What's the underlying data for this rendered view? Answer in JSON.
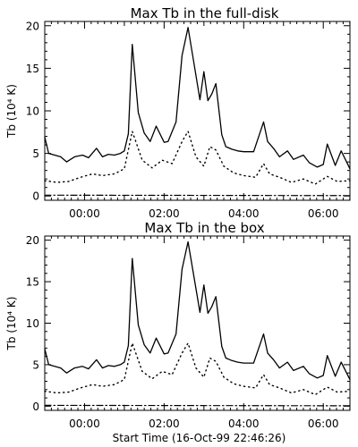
{
  "chart_data": [
    {
      "type": "line",
      "title": "Max Tb in the full-disk",
      "ylabel": "Tb (10⁴ K)",
      "xlabel": "",
      "xlim": [
        -1.0,
        6.67
      ],
      "ylim": [
        -0.5,
        20.5
      ],
      "x_ticks": [
        0,
        2,
        4,
        6
      ],
      "x_tick_labels": [
        "00:00",
        "02:00",
        "04:00",
        "06:00"
      ],
      "y_ticks": [
        0,
        5,
        10,
        15,
        20
      ],
      "y_tick_labels": [
        "0",
        "5",
        "10",
        "15",
        "20"
      ],
      "grid": false,
      "series": [
        {
          "style": "solid",
          "x": [
            -1.0,
            -0.9,
            -0.6,
            -0.45,
            -0.25,
            -0.05,
            0.1,
            0.3,
            0.45,
            0.6,
            0.75,
            0.9,
            1.0,
            1.1,
            1.2,
            1.35,
            1.5,
            1.65,
            1.8,
            2.0,
            2.1,
            2.3,
            2.45,
            2.6,
            2.75,
            2.9,
            3.0,
            3.1,
            3.2,
            3.3,
            3.45,
            3.55,
            3.7,
            3.85,
            4.0,
            4.25,
            4.5,
            4.6,
            4.75,
            4.9,
            5.1,
            5.25,
            5.5,
            5.65,
            5.85,
            6.0,
            6.1,
            6.3,
            6.45,
            6.67
          ],
          "y": [
            6.9,
            5.0,
            4.6,
            4.0,
            4.6,
            4.8,
            4.5,
            5.6,
            4.6,
            4.9,
            4.8,
            5.0,
            5.3,
            7.3,
            17.8,
            9.8,
            7.4,
            6.4,
            8.2,
            6.3,
            6.4,
            8.7,
            16.5,
            19.8,
            15.6,
            11.3,
            14.6,
            11.2,
            12.0,
            13.2,
            7.2,
            5.8,
            5.5,
            5.3,
            5.2,
            5.2,
            8.7,
            6.4,
            5.6,
            4.6,
            5.3,
            4.3,
            4.8,
            3.9,
            3.4,
            3.7,
            6.1,
            3.6,
            5.3,
            3.2
          ]
        },
        {
          "style": "dotted",
          "x": [
            -1.0,
            -0.7,
            -0.4,
            -0.1,
            0.2,
            0.45,
            0.75,
            1.0,
            1.2,
            1.45,
            1.7,
            1.95,
            2.2,
            2.45,
            2.6,
            2.8,
            3.0,
            3.15,
            3.3,
            3.5,
            3.75,
            4.0,
            4.3,
            4.5,
            4.65,
            4.9,
            5.2,
            5.5,
            5.8,
            6.1,
            6.35,
            6.67
          ],
          "y": [
            1.8,
            1.6,
            1.7,
            2.2,
            2.6,
            2.4,
            2.6,
            3.2,
            7.6,
            4.2,
            3.3,
            4.2,
            3.8,
            6.4,
            7.6,
            4.6,
            3.5,
            5.8,
            5.4,
            3.5,
            2.7,
            2.4,
            2.2,
            3.8,
            2.6,
            2.2,
            1.6,
            2.0,
            1.4,
            2.3,
            1.7,
            1.8
          ]
        },
        {
          "style": "dash-dot",
          "x": [
            -1.0,
            6.67
          ],
          "y": [
            0.1,
            0.05
          ]
        }
      ]
    },
    {
      "type": "line",
      "title": "Max Tb in the box",
      "ylabel": "Tb (10⁴ K)",
      "xlabel": "Start Time (16-Oct-99 22:46:26)",
      "xlim": [
        -1.0,
        6.67
      ],
      "ylim": [
        -0.5,
        20.5
      ],
      "x_ticks": [
        0,
        2,
        4,
        6
      ],
      "x_tick_labels": [
        "00:00",
        "02:00",
        "04:00",
        "06:00"
      ],
      "y_ticks": [
        0,
        5,
        10,
        15,
        20
      ],
      "y_tick_labels": [
        "0",
        "5",
        "10",
        "15",
        "20"
      ],
      "grid": false,
      "series": [
        {
          "style": "solid",
          "x": [
            -1.0,
            -0.9,
            -0.6,
            -0.45,
            -0.25,
            -0.05,
            0.1,
            0.3,
            0.45,
            0.6,
            0.75,
            0.9,
            1.0,
            1.1,
            1.2,
            1.35,
            1.5,
            1.65,
            1.8,
            2.0,
            2.1,
            2.3,
            2.45,
            2.6,
            2.75,
            2.9,
            3.0,
            3.1,
            3.2,
            3.3,
            3.45,
            3.55,
            3.7,
            3.85,
            4.0,
            4.25,
            4.5,
            4.6,
            4.75,
            4.9,
            5.1,
            5.25,
            5.5,
            5.65,
            5.85,
            6.0,
            6.1,
            6.3,
            6.45,
            6.67
          ],
          "y": [
            6.9,
            5.0,
            4.6,
            4.0,
            4.6,
            4.8,
            4.5,
            5.6,
            4.6,
            4.9,
            4.8,
            5.0,
            5.3,
            7.3,
            17.8,
            9.8,
            7.4,
            6.4,
            8.2,
            6.3,
            6.4,
            8.7,
            16.5,
            19.8,
            15.6,
            11.3,
            14.6,
            11.2,
            12.0,
            13.2,
            7.2,
            5.8,
            5.5,
            5.3,
            5.2,
            5.2,
            8.7,
            6.4,
            5.6,
            4.6,
            5.3,
            4.3,
            4.8,
            3.9,
            3.4,
            3.7,
            6.1,
            3.6,
            5.3,
            3.2
          ]
        },
        {
          "style": "dotted",
          "x": [
            -1.0,
            -0.7,
            -0.4,
            -0.1,
            0.2,
            0.45,
            0.75,
            1.0,
            1.2,
            1.45,
            1.7,
            1.95,
            2.2,
            2.45,
            2.6,
            2.8,
            3.0,
            3.15,
            3.3,
            3.5,
            3.75,
            4.0,
            4.3,
            4.5,
            4.65,
            4.9,
            5.2,
            5.5,
            5.8,
            6.1,
            6.35,
            6.67
          ],
          "y": [
            1.8,
            1.6,
            1.7,
            2.2,
            2.6,
            2.4,
            2.6,
            3.2,
            7.6,
            4.2,
            3.3,
            4.2,
            3.8,
            6.4,
            7.6,
            4.6,
            3.5,
            5.8,
            5.4,
            3.5,
            2.7,
            2.4,
            2.2,
            3.8,
            2.6,
            2.2,
            1.6,
            2.0,
            1.4,
            2.3,
            1.7,
            1.8
          ]
        },
        {
          "style": "dash-dot",
          "x": [
            -1.0,
            6.67
          ],
          "y": [
            0.1,
            0.05
          ]
        }
      ]
    }
  ]
}
